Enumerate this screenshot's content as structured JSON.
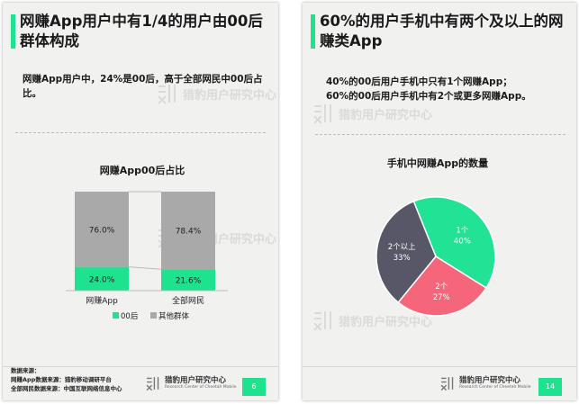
{
  "left": {
    "title": "网赚App用户中有1/4的用户由00后群体构成",
    "description": "网赚App用户中，24%是00后，高于全部网民中00后占比。",
    "watermark": {
      "brand": "猎豹用户研究中心",
      "sub": "Research Center of Cheetah Mobile"
    },
    "source": {
      "heading": "数据来源：",
      "line1": "网赚App数据来源：猎豹移动调研平台",
      "line2": "全部网民数据来源：中国互联网络信息中心"
    },
    "footer": {
      "brand": "猎豹用户研究中心",
      "sub": "Research Center of Cheetah Mobile",
      "page": "6"
    }
  },
  "right": {
    "title": "60%的用户手机中有两个及以上的网赚类App",
    "line1": "40%的00后用户手机中只有1个网赚App；",
    "line2": "60%的00后用户手机中有2个或更多网赚App。",
    "watermark": {
      "brand": "猎豹用户研究中心",
      "sub": "Research Center of Cheetah Mobile"
    },
    "footer": {
      "brand": "猎豹用户研究中心",
      "sub": "Research Center of Cheetah Mobile",
      "page": "14"
    }
  },
  "chart_data": [
    {
      "type": "bar",
      "stacked": true,
      "percent": true,
      "title": "网赚App00后占比",
      "categories": [
        "网赚App",
        "全部网民"
      ],
      "series": [
        {
          "name": "00后",
          "values": [
            24.0,
            21.6
          ],
          "labels": [
            "24.0%",
            "21.6%"
          ],
          "color": "#1de28e"
        },
        {
          "name": "其他群体",
          "values": [
            76.0,
            78.4
          ],
          "labels": [
            "76.0%",
            "78.4%"
          ],
          "color": "#a9a9a9"
        }
      ],
      "legend": "bottom",
      "ylim": [
        0,
        100
      ]
    },
    {
      "type": "pie",
      "title": "手机中网赚App的数量",
      "slices": [
        {
          "name": "1个",
          "value": 40,
          "label": "40%",
          "color": "#22e295"
        },
        {
          "name": "2个",
          "value": 27,
          "label": "27%",
          "color": "#f5667b"
        },
        {
          "name": "2个以上",
          "value": 33,
          "label": "33%",
          "color": "#575767"
        }
      ]
    }
  ]
}
